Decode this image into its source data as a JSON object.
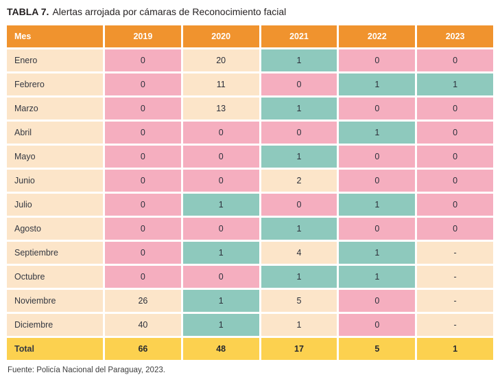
{
  "title": {
    "label": "TABLA 7.",
    "text": "Alertas arrojada por cámaras de Reconocimiento facial"
  },
  "colors": {
    "header_orange": "#F0932E",
    "peach": "#FCE5C9",
    "pink": "#F5AEBF",
    "teal": "#8EC9BD",
    "total_yellow": "#FCD14F"
  },
  "table": {
    "columns": [
      "Mes",
      "2019",
      "2020",
      "2021",
      "2022",
      "2023"
    ],
    "rows": [
      {
        "month": "Enero",
        "cells": [
          {
            "v": "0",
            "c": "pink"
          },
          {
            "v": "20",
            "c": "peach"
          },
          {
            "v": "1",
            "c": "teal"
          },
          {
            "v": "0",
            "c": "pink"
          },
          {
            "v": "0",
            "c": "pink"
          }
        ]
      },
      {
        "month": "Febrero",
        "cells": [
          {
            "v": "0",
            "c": "pink"
          },
          {
            "v": "11",
            "c": "peach"
          },
          {
            "v": "0",
            "c": "pink"
          },
          {
            "v": "1",
            "c": "teal"
          },
          {
            "v": "1",
            "c": "teal"
          }
        ]
      },
      {
        "month": "Marzo",
        "cells": [
          {
            "v": "0",
            "c": "pink"
          },
          {
            "v": "13",
            "c": "peach"
          },
          {
            "v": "1",
            "c": "teal"
          },
          {
            "v": "0",
            "c": "pink"
          },
          {
            "v": "0",
            "c": "pink"
          }
        ]
      },
      {
        "month": "Abril",
        "cells": [
          {
            "v": "0",
            "c": "pink"
          },
          {
            "v": "0",
            "c": "pink"
          },
          {
            "v": "0",
            "c": "pink"
          },
          {
            "v": "1",
            "c": "teal"
          },
          {
            "v": "0",
            "c": "pink"
          }
        ]
      },
      {
        "month": "Mayo",
        "cells": [
          {
            "v": "0",
            "c": "pink"
          },
          {
            "v": "0",
            "c": "pink"
          },
          {
            "v": "1",
            "c": "teal"
          },
          {
            "v": "0",
            "c": "pink"
          },
          {
            "v": "0",
            "c": "pink"
          }
        ]
      },
      {
        "month": "Junio",
        "cells": [
          {
            "v": "0",
            "c": "pink"
          },
          {
            "v": "0",
            "c": "pink"
          },
          {
            "v": "2",
            "c": "peach"
          },
          {
            "v": "0",
            "c": "pink"
          },
          {
            "v": "0",
            "c": "pink"
          }
        ]
      },
      {
        "month": "Julio",
        "cells": [
          {
            "v": "0",
            "c": "pink"
          },
          {
            "v": "1",
            "c": "teal"
          },
          {
            "v": "0",
            "c": "pink"
          },
          {
            "v": "1",
            "c": "teal"
          },
          {
            "v": "0",
            "c": "pink"
          }
        ]
      },
      {
        "month": "Agosto",
        "cells": [
          {
            "v": "0",
            "c": "pink"
          },
          {
            "v": "0",
            "c": "pink"
          },
          {
            "v": "1",
            "c": "teal"
          },
          {
            "v": "0",
            "c": "pink"
          },
          {
            "v": "0",
            "c": "pink"
          }
        ]
      },
      {
        "month": "Septiembre",
        "cells": [
          {
            "v": "0",
            "c": "pink"
          },
          {
            "v": "1",
            "c": "teal"
          },
          {
            "v": "4",
            "c": "peach"
          },
          {
            "v": "1",
            "c": "teal"
          },
          {
            "v": "-",
            "c": "peach"
          }
        ]
      },
      {
        "month": "Octubre",
        "cells": [
          {
            "v": "0",
            "c": "pink"
          },
          {
            "v": "0",
            "c": "pink"
          },
          {
            "v": "1",
            "c": "teal"
          },
          {
            "v": "1",
            "c": "teal"
          },
          {
            "v": "-",
            "c": "peach"
          }
        ]
      },
      {
        "month": "Noviembre",
        "cells": [
          {
            "v": "26",
            "c": "peach"
          },
          {
            "v": "1",
            "c": "teal"
          },
          {
            "v": "5",
            "c": "peach"
          },
          {
            "v": "0",
            "c": "pink"
          },
          {
            "v": "-",
            "c": "peach"
          }
        ]
      },
      {
        "month": "Diciembre",
        "cells": [
          {
            "v": "40",
            "c": "peach"
          },
          {
            "v": "1",
            "c": "teal"
          },
          {
            "v": "1",
            "c": "peach"
          },
          {
            "v": "0",
            "c": "pink"
          },
          {
            "v": "-",
            "c": "peach"
          }
        ]
      }
    ],
    "total": {
      "label": "Total",
      "values": [
        "66",
        "48",
        "17",
        "5",
        "1"
      ]
    }
  },
  "footer": "Fuente: Policía Nacional del Paraguay, 2023."
}
